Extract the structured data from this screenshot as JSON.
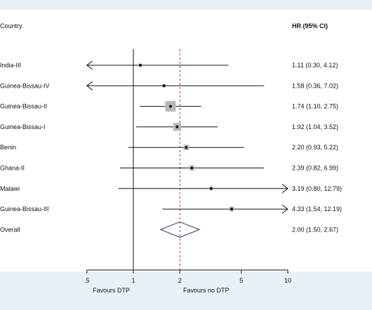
{
  "chart_data": {
    "type": "forest",
    "header_left": "Country",
    "header_right": "HR (95% CI)",
    "scale": "log",
    "xlim": [
      0.5,
      10
    ],
    "x_ticks": [
      ".5",
      "1",
      "2",
      "5",
      "10"
    ],
    "x_tick_values": [
      0.5,
      1,
      2,
      5,
      10
    ],
    "reference_line": 1,
    "overall_line": 2.0,
    "favours_left": "Favours DTP",
    "favours_right": "Favours no DTP",
    "rows": [
      {
        "label": "India-III",
        "hr": 1.11,
        "lo": 0.3,
        "hi": 4.12,
        "ci_text": "1.11 (0.30, 4.12)",
        "weight": 0.15
      },
      {
        "label": "Guinea-Bissau-IV",
        "hr": 1.58,
        "lo": 0.36,
        "hi": 7.02,
        "ci_text": "1.58 (0.36, 7.02)",
        "weight": 0.15
      },
      {
        "label": "Guinea-Bissau-II",
        "hr": 1.74,
        "lo": 1.1,
        "hi": 2.75,
        "ci_text": "1.74 (1.10, 2.75)",
        "weight": 1.0
      },
      {
        "label": "Guinea-Bissau-I",
        "hr": 1.92,
        "lo": 1.04,
        "hi": 3.52,
        "ci_text": "1.92 (1.04, 3.52)",
        "weight": 0.7
      },
      {
        "label": "Benin",
        "hr": 2.2,
        "lo": 0.93,
        "hi": 5.22,
        "ci_text": "2.20 (0.93, 5.22)",
        "weight": 0.4
      },
      {
        "label": "Ghana-II",
        "hr": 2.39,
        "lo": 0.82,
        "hi": 6.99,
        "ci_text": "2.39 (0.82, 6.99)",
        "weight": 0.35
      },
      {
        "label": "Malawi",
        "hr": 3.19,
        "lo": 0.8,
        "hi": 12.79,
        "ci_text": "3.19 (0.80, 12.79)",
        "weight": 0.2
      },
      {
        "label": "Guinea-Bissau-III",
        "hr": 4.33,
        "lo": 1.54,
        "hi": 12.19,
        "ci_text": "4.33 (1.54, 12.19)",
        "weight": 0.3
      }
    ],
    "overall": {
      "label": "Overall",
      "hr": 2.0,
      "lo": 1.5,
      "hi": 2.67,
      "ci_text": "2.00 (1.50, 2.67)"
    },
    "colors": {
      "line": "#111111",
      "box": "#b8b8b8",
      "diamond": "#3a2e7a",
      "dashed": "#c0272d"
    }
  }
}
